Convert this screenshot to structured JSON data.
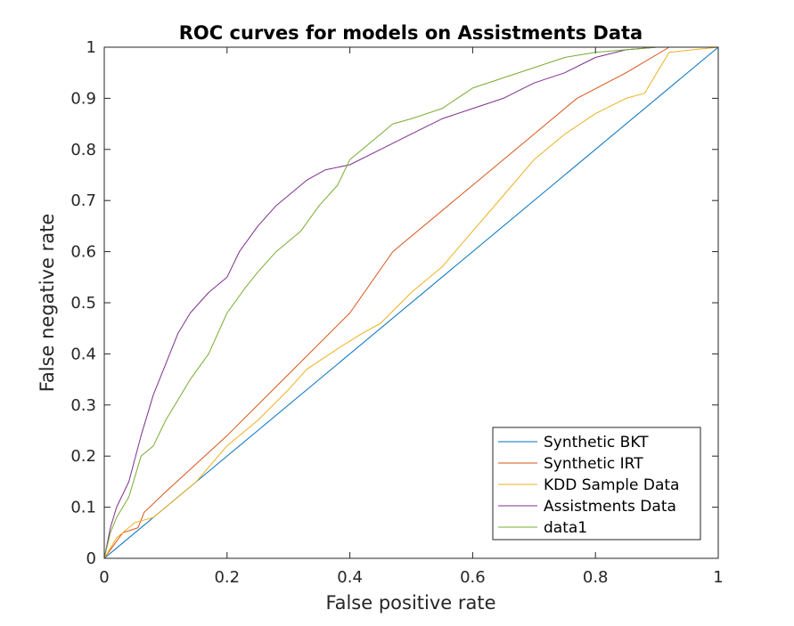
{
  "chart_data": {
    "type": "line",
    "title": "ROC curves for models on Assistments Data",
    "xlabel": "False positive rate",
    "ylabel": "False negative rate",
    "xlim": [
      0,
      1
    ],
    "ylim": [
      0,
      1
    ],
    "xticks": [
      "0",
      "0.2",
      "0.4",
      "0.6",
      "0.8",
      "1"
    ],
    "yticks": [
      "0",
      "0.1",
      "0.2",
      "0.3",
      "0.4",
      "0.5",
      "0.6",
      "0.7",
      "0.8",
      "0.9",
      "1"
    ],
    "grid": false,
    "legend_position": "bottom-right",
    "series": [
      {
        "name": "Synthetic BKT",
        "color": "#0072BD",
        "points": [
          [
            0,
            0
          ],
          [
            1,
            1
          ]
        ]
      },
      {
        "name": "Synthetic IRT",
        "color": "#D95319",
        "points": [
          [
            0,
            0
          ],
          [
            0.03,
            0.05
          ],
          [
            0.055,
            0.06
          ],
          [
            0.065,
            0.09
          ],
          [
            0.1,
            0.13
          ],
          [
            0.2,
            0.24
          ],
          [
            0.3,
            0.36
          ],
          [
            0.4,
            0.48
          ],
          [
            0.47,
            0.6
          ],
          [
            0.6,
            0.73
          ],
          [
            0.7,
            0.83
          ],
          [
            0.77,
            0.9
          ],
          [
            0.85,
            0.95
          ],
          [
            0.92,
            1.0
          ],
          [
            1,
            1
          ]
        ]
      },
      {
        "name": "KDD Sample Data",
        "color": "#EDB120",
        "points": [
          [
            0,
            0
          ],
          [
            0.02,
            0.04
          ],
          [
            0.05,
            0.07
          ],
          [
            0.08,
            0.08
          ],
          [
            0.12,
            0.12
          ],
          [
            0.15,
            0.15
          ],
          [
            0.2,
            0.22
          ],
          [
            0.25,
            0.27
          ],
          [
            0.3,
            0.33
          ],
          [
            0.33,
            0.37
          ],
          [
            0.38,
            0.41
          ],
          [
            0.42,
            0.44
          ],
          [
            0.45,
            0.46
          ],
          [
            0.5,
            0.52
          ],
          [
            0.55,
            0.57
          ],
          [
            0.6,
            0.64
          ],
          [
            0.65,
            0.71
          ],
          [
            0.7,
            0.78
          ],
          [
            0.75,
            0.83
          ],
          [
            0.8,
            0.87
          ],
          [
            0.85,
            0.9
          ],
          [
            0.88,
            0.91
          ],
          [
            0.9,
            0.95
          ],
          [
            0.92,
            0.99
          ],
          [
            1,
            1
          ]
        ]
      },
      {
        "name": "Assistments Data",
        "color": "#7E2F8E",
        "points": [
          [
            0,
            0
          ],
          [
            0.01,
            0.06
          ],
          [
            0.02,
            0.1
          ],
          [
            0.04,
            0.15
          ],
          [
            0.06,
            0.24
          ],
          [
            0.08,
            0.32
          ],
          [
            0.1,
            0.38
          ],
          [
            0.12,
            0.44
          ],
          [
            0.14,
            0.48
          ],
          [
            0.17,
            0.52
          ],
          [
            0.2,
            0.55
          ],
          [
            0.22,
            0.6
          ],
          [
            0.25,
            0.65
          ],
          [
            0.28,
            0.69
          ],
          [
            0.3,
            0.71
          ],
          [
            0.33,
            0.74
          ],
          [
            0.36,
            0.76
          ],
          [
            0.4,
            0.77
          ],
          [
            0.45,
            0.8
          ],
          [
            0.5,
            0.83
          ],
          [
            0.55,
            0.86
          ],
          [
            0.6,
            0.88
          ],
          [
            0.65,
            0.9
          ],
          [
            0.7,
            0.93
          ],
          [
            0.75,
            0.95
          ],
          [
            0.8,
            0.98
          ],
          [
            0.85,
            0.995
          ],
          [
            0.9,
            1.0
          ],
          [
            1,
            1
          ]
        ]
      },
      {
        "name": "data1",
        "color": "#77AC30",
        "points": [
          [
            0,
            0
          ],
          [
            0.01,
            0.05
          ],
          [
            0.02,
            0.08
          ],
          [
            0.04,
            0.12
          ],
          [
            0.06,
            0.2
          ],
          [
            0.08,
            0.22
          ],
          [
            0.1,
            0.27
          ],
          [
            0.12,
            0.31
          ],
          [
            0.14,
            0.35
          ],
          [
            0.17,
            0.4
          ],
          [
            0.2,
            0.48
          ],
          [
            0.23,
            0.53
          ],
          [
            0.25,
            0.56
          ],
          [
            0.28,
            0.6
          ],
          [
            0.32,
            0.64
          ],
          [
            0.35,
            0.69
          ],
          [
            0.38,
            0.73
          ],
          [
            0.4,
            0.78
          ],
          [
            0.43,
            0.81
          ],
          [
            0.47,
            0.85
          ],
          [
            0.5,
            0.86
          ],
          [
            0.55,
            0.88
          ],
          [
            0.6,
            0.92
          ],
          [
            0.65,
            0.94
          ],
          [
            0.7,
            0.96
          ],
          [
            0.75,
            0.98
          ],
          [
            0.8,
            0.99
          ],
          [
            0.85,
            0.995
          ],
          [
            0.9,
            1.0
          ],
          [
            1,
            1
          ]
        ]
      }
    ]
  }
}
